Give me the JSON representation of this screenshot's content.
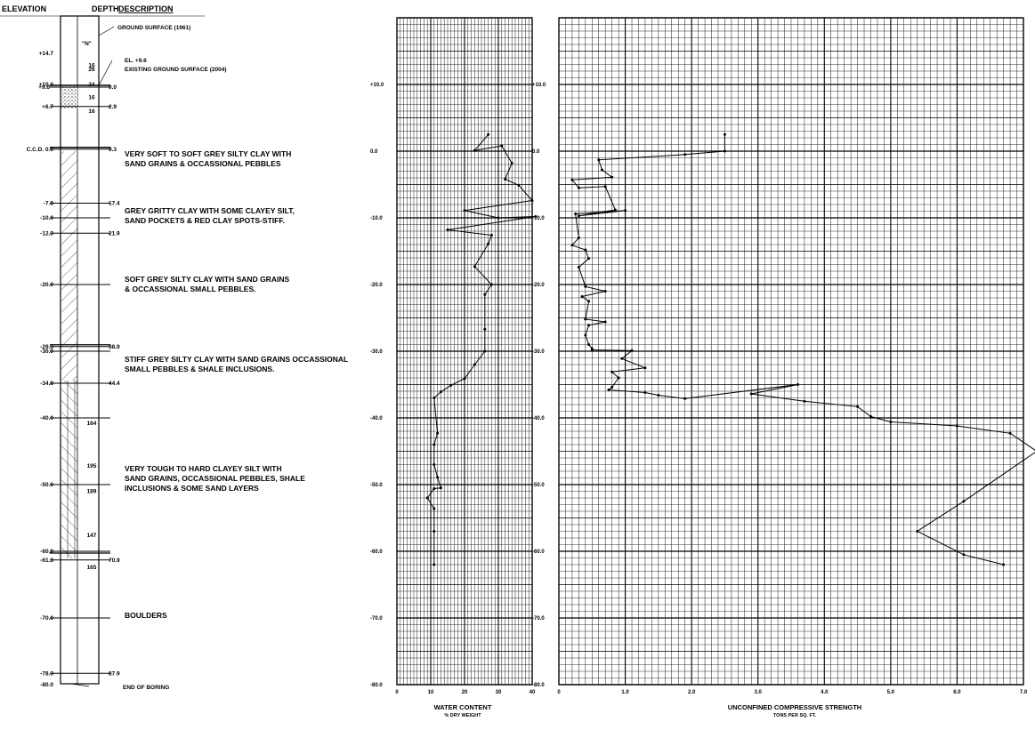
{
  "log": {
    "headers": {
      "elevation": "ELEVATION",
      "depth": "DEPTH",
      "description": "DESCRIPTION",
      "n_value": "\"N\""
    },
    "ground_1961": "GROUND SURFACE (1961)",
    "ground_2004_el": "EL. +9.6",
    "ground_2004": "EXISTING GROUND SURFACE (2004)",
    "end_of_boring": "END OF BORING",
    "elevation_labels": [
      {
        "elev": 14.7,
        "text": "+14.7"
      },
      {
        "elev": 10.0,
        "text": "+10.0"
      },
      {
        "elev": 9.6,
        "text": "+9.6"
      },
      {
        "elev": 6.7,
        "text": "+6.7"
      },
      {
        "elev": 0.3,
        "text": "C.C.D. 0.0"
      },
      {
        "elev": -7.8,
        "text": "-7.8"
      },
      {
        "elev": -10.0,
        "text": "-10.0"
      },
      {
        "elev": -12.3,
        "text": "-12.3"
      },
      {
        "elev": -20.0,
        "text": "-20.0"
      },
      {
        "elev": -29.3,
        "text": "-29.3"
      },
      {
        "elev": -30.0,
        "text": "-30.0"
      },
      {
        "elev": -34.8,
        "text": "-34.8"
      },
      {
        "elev": -40.0,
        "text": "-40.0"
      },
      {
        "elev": -50.0,
        "text": "-50.0"
      },
      {
        "elev": -60.0,
        "text": "-60.0"
      },
      {
        "elev": -61.3,
        "text": "-61.3"
      },
      {
        "elev": -70.0,
        "text": "-70.0"
      },
      {
        "elev": -78.3,
        "text": "-78.3"
      },
      {
        "elev": -80.0,
        "text": "-80.0"
      }
    ],
    "depths": [
      {
        "elev": 9.6,
        "text": "0.0"
      },
      {
        "elev": 6.7,
        "text": "2.9"
      },
      {
        "elev": 0.3,
        "text": "9.3"
      },
      {
        "elev": -7.8,
        "text": "17.4"
      },
      {
        "elev": -12.3,
        "text": "21.9"
      },
      {
        "elev": -29.3,
        "text": "38.9"
      },
      {
        "elev": -34.8,
        "text": "44.4"
      },
      {
        "elev": -61.3,
        "text": "70.9"
      },
      {
        "elev": -78.3,
        "text": "87.9"
      }
    ],
    "n_values": [
      {
        "elev": 12.3,
        "text": "26"
      },
      {
        "elev": 8.1,
        "text": "16"
      },
      {
        "elev": 12.9,
        "text": "16"
      },
      {
        "elev": 10.0,
        "text": "24"
      },
      {
        "elev": 6.0,
        "text": "16"
      },
      {
        "elev": -40.8,
        "text": "164"
      },
      {
        "elev": -47.2,
        "text": "195"
      },
      {
        "elev": -51.0,
        "text": "189"
      },
      {
        "elev": -57.6,
        "text": "147"
      },
      {
        "elev": -62.4,
        "text": "165"
      }
    ],
    "descriptions": [
      {
        "elev": -0.8,
        "lines": [
          "VERY SOFT TO SOFT GREY SILTY CLAY WITH",
          "SAND GRAINS & OCCASSIONAL PEBBLES"
        ]
      },
      {
        "elev": -9.3,
        "lines": [
          "GREY GRITTY CLAY WITH SOME CLAYEY SILT,",
          "SAND POCKETS & RED CLAY SPOTS-STIFF."
        ]
      },
      {
        "elev": -19.6,
        "lines": [
          "SOFT GREY SILTY CLAY WITH SAND GRAINS",
          "& OCCASSIONAL SMALL PEBBLES."
        ]
      },
      {
        "elev": -31.6,
        "lines": [
          "STIFF GREY SILTY CLAY WITH SAND GRAINS OCCASSIONAL",
          "SMALL PEBBLES & SHALE INCLUSIONS."
        ]
      },
      {
        "elev": -48.0,
        "lines": [
          "VERY TOUGH TO HARD CLAYEY SILT WITH",
          "SAND GRAINS, OCCASSIONAL PEBBLES, SHALE",
          "INCLUSIONS & SOME SAND LAYERS"
        ]
      },
      {
        "elev": -70.0,
        "lines": [
          "BOULDERS"
        ]
      }
    ]
  },
  "chart_data": [
    {
      "type": "line",
      "xlabel": "WATER CONTENT",
      "xlabel_sub": "% DRY WEIGHT",
      "xlim": [
        0,
        40
      ],
      "xticks": [
        0,
        10,
        20,
        30,
        40
      ],
      "ylim": [
        -80,
        20
      ],
      "yticks": [
        10,
        0,
        -10,
        -20,
        -30,
        -40,
        -50,
        -60,
        -70,
        -80
      ],
      "ytick_labels": [
        "+10.0",
        "0.0",
        "-10.0",
        "-20.0",
        "-30.0",
        "-40.0",
        "-50.0",
        "-60.0",
        "-70.0",
        "-80.0"
      ],
      "grid": true,
      "x": [
        27,
        23,
        31,
        34,
        32,
        36,
        40,
        20,
        30,
        41,
        15,
        28,
        27,
        23,
        28,
        26,
        26,
        26,
        23,
        20,
        16,
        13,
        11,
        12,
        11,
        11,
        12,
        13,
        11,
        9,
        11,
        11,
        11
      ],
      "y": [
        2.5,
        0.1,
        0.8,
        -1.8,
        -4.2,
        -5.1,
        -7.4,
        -8.9,
        -10.0,
        -9.8,
        -11.8,
        -12.6,
        -13.9,
        -17.3,
        -20.0,
        -21.5,
        -26.7,
        -30.0,
        -32.0,
        -34.1,
        -35.1,
        -36.1,
        -37.0,
        -42.3,
        -44.0,
        -47.0,
        -48.9,
        -50.5,
        -50.6,
        -52.0,
        -53.6,
        -57.0,
        -62.0
      ]
    },
    {
      "type": "line",
      "xlabel": "UNCONFINED COMPRESSIVE STRENGTH",
      "xlabel_sub": "TONS PER SQ. FT.",
      "xlim": [
        0,
        7.0
      ],
      "xticks": [
        0,
        1.0,
        2.0,
        3.0,
        4.0,
        5.0,
        6.0,
        7.0
      ],
      "xtick_labels": [
        "0",
        "1.0",
        "2.0",
        "3.0",
        "4.0",
        "5.0",
        "6.0",
        "7.0"
      ],
      "ylim": [
        -80,
        20
      ],
      "yticks": [
        10,
        0,
        -10,
        -20,
        -30,
        -40,
        -50,
        -60,
        -70,
        -80
      ],
      "ytick_labels": [
        "+10.0",
        "0.0",
        "-10.0",
        "-20.0",
        "-30.0",
        "-40.0",
        "-50.0",
        "-60.0",
        "-70.0",
        "-80.0"
      ],
      "grid": true,
      "x": [
        2.5,
        2.5,
        1.9,
        0.6,
        0.65,
        0.8,
        0.2,
        0.3,
        0.7,
        0.85,
        0.3,
        1.0,
        0.25,
        0.3,
        0.2,
        0.4,
        0.45,
        0.3,
        0.4,
        0.7,
        0.35,
        0.45,
        0.4,
        0.7,
        0.45,
        0.4,
        0.45,
        0.5,
        0.5,
        1.1,
        0.95,
        1.3,
        0.8,
        0.9,
        0.8,
        0.75,
        1.3,
        1.5,
        1.9,
        3.6,
        2.9,
        3.7,
        4.5,
        4.7,
        5.0,
        6.0,
        6.8,
        7.2,
        6.1,
        5.4,
        6.1,
        6.7
      ],
      "y": [
        2.5,
        0.0,
        -0.5,
        -1.3,
        -2.8,
        -3.9,
        -4.3,
        -5.5,
        -5.3,
        -8.8,
        -9.7,
        -8.9,
        -9.4,
        -13.0,
        -14.1,
        -14.8,
        -16.1,
        -17.4,
        -20.3,
        -21.0,
        -21.8,
        -22.5,
        -25.2,
        -25.6,
        -26.1,
        -27.6,
        -29.0,
        -29.6,
        -29.8,
        -29.9,
        -31.1,
        -32.5,
        -33.1,
        -34.0,
        -35.4,
        -35.8,
        -36.2,
        -36.6,
        -37.1,
        -35.0,
        -36.4,
        -37.5,
        -38.3,
        -39.8,
        -40.6,
        -41.2,
        -42.3,
        -45.0,
        -52.5,
        -57.0,
        -60.5,
        -62.0
      ]
    }
  ]
}
